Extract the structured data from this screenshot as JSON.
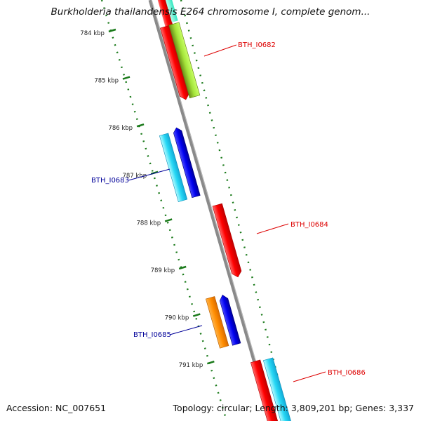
{
  "title": "Burkholderia thailandensis E264 chromosome I, complete genom...",
  "footer": {
    "accession_label": "Accession:",
    "accession": "NC_007651",
    "topology_label": "Topology:",
    "topology": "circular",
    "length_label": "Length:",
    "length": "3,809,201 bp",
    "genes_label": "Genes:",
    "genes": "3,337"
  },
  "ticks": [
    {
      "label": "784 kbp",
      "kbp": 784
    },
    {
      "label": "785 kbp",
      "kbp": 785
    },
    {
      "label": "786 kbp",
      "kbp": 786
    },
    {
      "label": "787 kbp",
      "kbp": 787
    },
    {
      "label": "788 kbp",
      "kbp": 788
    },
    {
      "label": "789 kbp",
      "kbp": 789
    },
    {
      "label": "790 kbp",
      "kbp": 790
    },
    {
      "label": "791 kbp",
      "kbp": 791
    }
  ],
  "gene_labels": [
    {
      "name": "BTH_I0682",
      "color": "#dd0000"
    },
    {
      "name": "BTH_I0683",
      "color": "#000099"
    },
    {
      "name": "BTH_I0684",
      "color": "#dd0000"
    },
    {
      "name": "BTH_I0685",
      "color": "#000099"
    },
    {
      "name": "BTH_I0686",
      "color": "#dd0000"
    }
  ],
  "colors": {
    "backbone": "#8c8c8c",
    "tick_dots": "#1a7a1a",
    "forward_gene": "#ff0000",
    "reverse_gene": "#0000dd"
  }
}
